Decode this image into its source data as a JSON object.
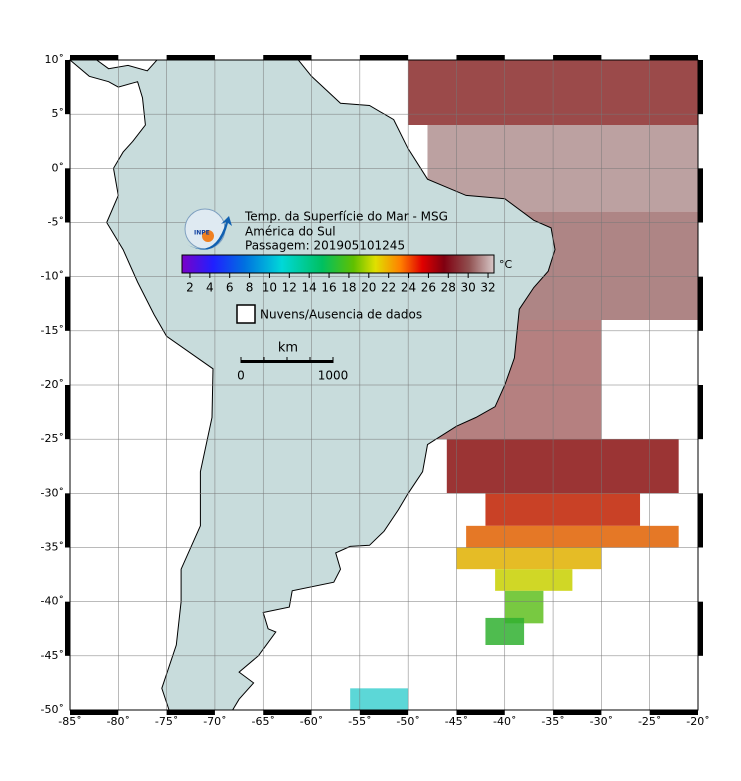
{
  "map": {
    "title": "Temp. da Superfície do Mar - MSG",
    "region": "América do Sul",
    "pass": "Passagem: 201905101245",
    "colorbar": {
      "unit": "°C",
      "range": [
        1.2,
        32.6
      ],
      "ticks": [
        2,
        4,
        6,
        8,
        10,
        12,
        14,
        16,
        18,
        20,
        22,
        24,
        26,
        28,
        30,
        32
      ]
    },
    "cloud_legend": "Nuvens/Ausencia de dados",
    "scale_bar": {
      "unit": "km",
      "start": "0",
      "end": "1000"
    },
    "logo_text": "INPE",
    "lon_lim": [
      -85,
      -20
    ],
    "lat_lim": [
      -50,
      10
    ],
    "lon_ticks": [
      {
        "value": -85,
        "label": "-85˚"
      },
      {
        "value": -80,
        "label": "-80˚"
      },
      {
        "value": -75,
        "label": "-75˚"
      },
      {
        "value": -70,
        "label": "-70˚"
      },
      {
        "value": -65,
        "label": "-65˚"
      },
      {
        "value": -60,
        "label": "-60˚"
      },
      {
        "value": -55,
        "label": "-55˚"
      },
      {
        "value": -50,
        "label": "-50˚"
      },
      {
        "value": -45,
        "label": "-45˚"
      },
      {
        "value": -40,
        "label": "-40˚"
      },
      {
        "value": -35,
        "label": "-35˚"
      },
      {
        "value": -30,
        "label": "-30˚"
      },
      {
        "value": -25,
        "label": "-25˚"
      },
      {
        "value": -20,
        "label": "-20˚"
      }
    ],
    "lat_ticks": [
      {
        "value": 10,
        "label": "10˚"
      },
      {
        "value": 5,
        "label": "5˚"
      },
      {
        "value": 0,
        "label": "0˚"
      },
      {
        "value": -5,
        "label": "-5˚"
      },
      {
        "value": -10,
        "label": "-10˚"
      },
      {
        "value": -15,
        "label": "-15˚"
      },
      {
        "value": -20,
        "label": "-20˚"
      },
      {
        "value": -25,
        "label": "-25˚"
      },
      {
        "value": -30,
        "label": "-30˚"
      },
      {
        "value": -35,
        "label": "-35˚"
      },
      {
        "value": -40,
        "label": "-40˚"
      },
      {
        "value": -45,
        "label": "-45˚"
      },
      {
        "value": -50,
        "label": "-50˚"
      }
    ]
  }
}
